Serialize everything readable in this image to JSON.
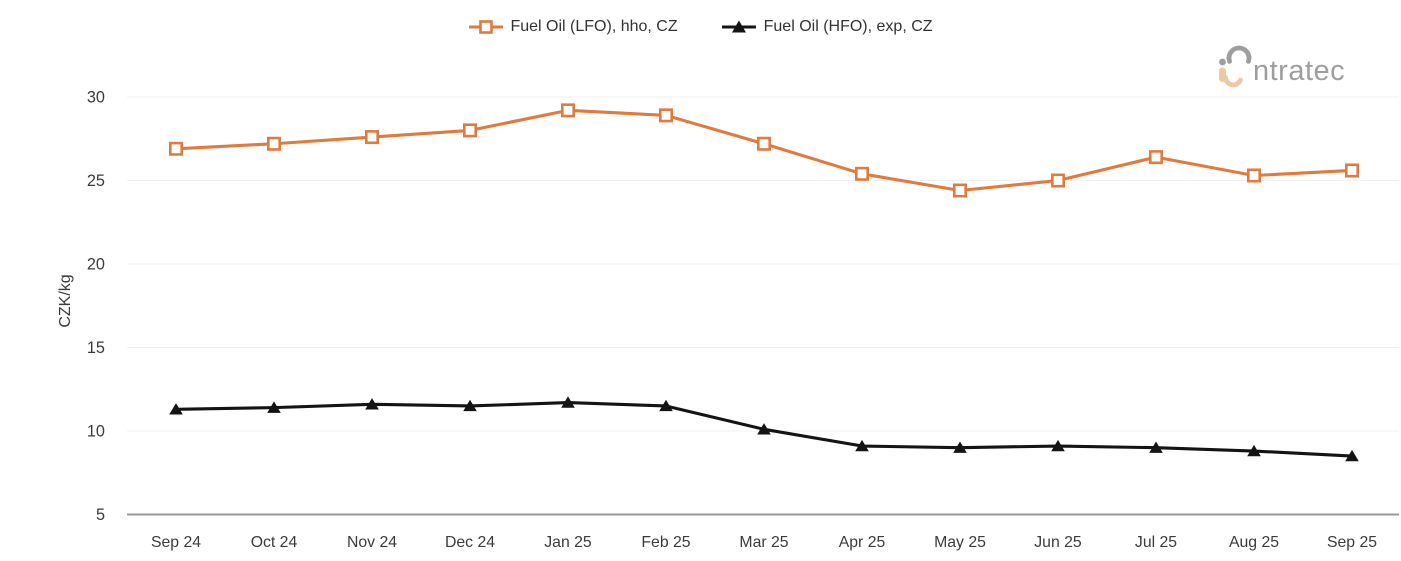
{
  "brand": {
    "wordmark": "ntratec",
    "mark_gray": "#9e9e9e",
    "mark_tan": "#ecc9a4"
  },
  "axes": {
    "y_title": "CZK/kg"
  },
  "chart_data": {
    "type": "line",
    "title": "",
    "ylabel": "CZK/kg",
    "xlabel": "",
    "grid": true,
    "legend_position": "top-center",
    "ylim": [
      5,
      31.5
    ],
    "y_ticks": [
      5,
      10,
      15,
      20,
      25,
      30
    ],
    "categories": [
      "Sep 24",
      "Oct 24",
      "Nov 24",
      "Dec 24",
      "Jan 25",
      "Feb 25",
      "Mar 25",
      "Apr 25",
      "May 25",
      "Jun 25",
      "Jul 25",
      "Aug 25",
      "Sep 25"
    ],
    "series": [
      {
        "id": "lfo",
        "name": "Fuel Oil (LFO), hho, CZ",
        "color": "#e07a3d",
        "marker": "open-square",
        "values": [
          26.9,
          27.2,
          27.6,
          28.0,
          29.2,
          28.9,
          27.2,
          25.4,
          24.4,
          25.0,
          26.4,
          25.3,
          25.6
        ]
      },
      {
        "id": "hfo",
        "name": "Fuel Oil (HFO), exp, CZ",
        "color": "#141414",
        "marker": "filled-triangle",
        "values": [
          11.3,
          11.4,
          11.6,
          11.5,
          11.7,
          11.5,
          10.1,
          9.1,
          9.0,
          9.1,
          9.0,
          8.8,
          8.5
        ]
      }
    ]
  }
}
